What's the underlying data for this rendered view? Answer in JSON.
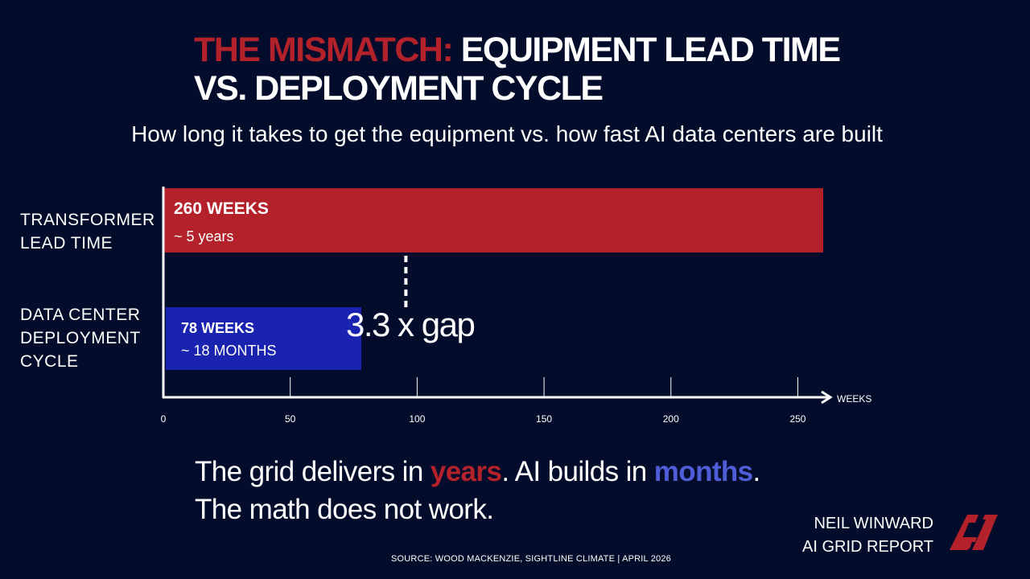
{
  "title": {
    "accent": "THE MISMATCH:",
    "line1_rest": "EQUIPMENT LEAD TIME",
    "line2": "VS. DEPLOYMENT CYCLE"
  },
  "subtitle": "How long it takes to get the equipment vs. how fast AI data centers are built",
  "rows": [
    {
      "label_line1": "TRANSFORMER",
      "label_line2": "LEAD TIME",
      "label_line3": ""
    },
    {
      "label_line1": "DATA CENTER",
      "label_line2": "DEPLOYMENT",
      "label_line3": "CYCLE"
    }
  ],
  "gap_label": "3.3 x gap",
  "tagline": {
    "part1": "The grid delivers in ",
    "red": "years",
    "part2": ". AI builds in ",
    "blue": "months",
    "part3": ".",
    "line2": "The math does not work."
  },
  "author": {
    "line1": "NEIL WINWARD",
    "line2": "AI GRID REPORT"
  },
  "logo_text": "AI",
  "source": "SOURCE: WOOD MACKENZIE, SIGHTLINE CLIMATE | APRIL 2026",
  "colors": {
    "background": "#030d2b",
    "red": "#b3212a",
    "blue": "#1a23b0",
    "highlight_blue": "#4f5dd8"
  },
  "chart_data": {
    "type": "bar",
    "orientation": "horizontal",
    "categories": [
      "TRANSFORMER LEAD TIME",
      "DATA CENTER DEPLOYMENT CYCLE"
    ],
    "values": [
      260,
      78
    ],
    "bar_labels": [
      "260 WEEKS",
      "78 WEEKS"
    ],
    "bar_sublabels": [
      "~ 5 years",
      "~ 18 MONTHS"
    ],
    "bar_colors": [
      "#b3212a",
      "#1a23b0"
    ],
    "xlabel": "WEEKS",
    "xticks": [
      0,
      50,
      100,
      150,
      200,
      250
    ],
    "xlim": [
      0,
      260
    ],
    "gap_marker_at": 100
  }
}
